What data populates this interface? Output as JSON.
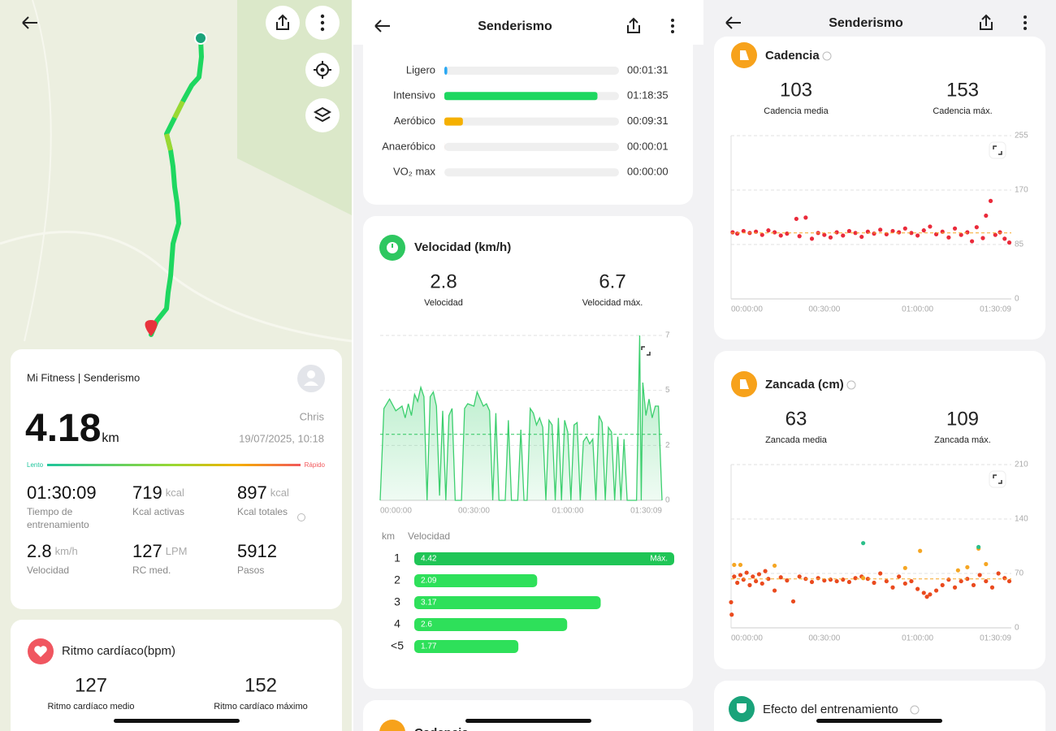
{
  "summary": {
    "source": "Mi Fitness | Senderismo",
    "user": "Chris",
    "datetime": "19/07/2025, 10:18",
    "distance": 4.18,
    "distance_unit": "km",
    "scale_low": "Lento",
    "scale_high": "Rápido",
    "stats": [
      {
        "value": "01:30:09",
        "label": "Tiempo de entrenamiento"
      },
      {
        "value": 719,
        "unit": "kcal",
        "label": "Kcal activas"
      },
      {
        "value": 897,
        "unit": "kcal",
        "label": "Kcal totales"
      },
      {
        "value": 2.8,
        "unit": "km/h",
        "label": "Velocidad"
      },
      {
        "value": 127,
        "unit": "LPM",
        "label": "RC med."
      },
      {
        "value": 5912,
        "label": "Pasos"
      }
    ]
  },
  "heart_rate": {
    "title": "Ritmo cardíaco(bpm)",
    "avg": 127,
    "avg_label": "Ritmo cardíaco medio",
    "max": 152,
    "max_label": "Ritmo cardíaco máximo"
  },
  "header": {
    "title": "Senderismo"
  },
  "zones": {
    "type": "bar",
    "categories": [
      "Ligero",
      "Intensivo",
      "Aeróbico",
      "Anaeróbico",
      "VO₂ max"
    ],
    "values": [
      91,
      4715,
      571,
      1,
      0
    ],
    "value_labels": [
      "00:01:31",
      "01:18:35",
      "00:09:31",
      "00:00:01",
      "00:00:00"
    ],
    "colors": [
      "#2aa8f2",
      "#1ed760",
      "#f5b000",
      "#e8501e",
      "#9b59b6"
    ]
  },
  "speed": {
    "title": "Velocidad (km/h)",
    "avg": 2.8,
    "avg_label": "Velocidad",
    "max": 6.7,
    "max_label": "Velocidad máx.",
    "chart": {
      "type": "line",
      "color": "#3ccf6e",
      "x": [
        0,
        1.2,
        3,
        5,
        7,
        8,
        9,
        10,
        11,
        12,
        13,
        14,
        15,
        16,
        17,
        18,
        19,
        20,
        21,
        22,
        23,
        24,
        26,
        27,
        28,
        30,
        31,
        32,
        33,
        34,
        35,
        36,
        37,
        38,
        40,
        41,
        42,
        44,
        45,
        46,
        47,
        48,
        49,
        50,
        51,
        52,
        53,
        54,
        55,
        56,
        57,
        58,
        59,
        60,
        61,
        62,
        63,
        64,
        65,
        66,
        67,
        68,
        69,
        70,
        71,
        72,
        73,
        74,
        75,
        76,
        77,
        78,
        79,
        82,
        83,
        83.5,
        84,
        85,
        86,
        87,
        88,
        89,
        90.15
      ],
      "values": [
        0,
        3.9,
        4.3,
        3.8,
        4.0,
        3.5,
        4.1,
        3.6,
        4.5,
        4.2,
        4.8,
        4.4,
        0,
        4.4,
        4.6,
        4.0,
        0.2,
        3.8,
        0,
        3.6,
        3.9,
        0,
        0,
        3.9,
        4.1,
        4.0,
        4.6,
        4.3,
        4.0,
        4.1,
        3.8,
        0,
        3.7,
        0,
        0,
        3.4,
        0,
        0,
        3.0,
        0,
        0,
        3.9,
        3.7,
        3.2,
        3.5,
        3.1,
        0,
        3.4,
        3.2,
        0,
        3.5,
        0,
        3.4,
        2.9,
        0,
        3.2,
        3.3,
        0,
        2.5,
        2.7,
        2.4,
        2.6,
        0,
        3.6,
        3.3,
        0,
        3.1,
        2.9,
        0,
        2.7,
        0,
        2.6,
        0,
        0,
        7.0,
        0,
        5.0,
        3.6,
        4.3,
        3.5,
        4.0,
        4.0,
        0
      ],
      "xlim": [
        0,
        90.15
      ],
      "xticks": [
        {
          "value": 0,
          "label": "00:00:00"
        },
        {
          "value": 30,
          "label": "00:30:00"
        },
        {
          "value": 60,
          "label": "01:00:00"
        },
        {
          "value": 90.15,
          "label": "01:30:09"
        }
      ],
      "ylim": [
        0,
        7
      ],
      "yticks": [
        0,
        {
          "value": 2.33,
          "label": "2"
        },
        {
          "value": 4.67,
          "label": "5"
        },
        7
      ],
      "grid": true
    }
  },
  "splits": {
    "type": "bar",
    "column_labels": [
      "km",
      "Velocidad"
    ],
    "categories": [
      "1",
      "2",
      "3",
      "4",
      "<5"
    ],
    "values": [
      4.42,
      2.09,
      3.17,
      2.6,
      1.77
    ],
    "max_label": "Máx.",
    "colors": [
      "#1fc556",
      "#2ee05a",
      "#2ee05a",
      "#2ee05a",
      "#2ee05a"
    ]
  },
  "next_card": {
    "title": "Cadencia"
  },
  "cadence": {
    "title": "Cadencia",
    "avg": 103,
    "avg_label": "Cadencia media",
    "max": 153,
    "max_label": "Cadencia máx.",
    "chart": {
      "type": "scatter",
      "xlim": [
        0,
        90.15
      ],
      "xticks": [
        {
          "value": 0,
          "label": "00:00:00"
        },
        {
          "value": 30,
          "label": "00:30:00"
        },
        {
          "value": 60,
          "label": "01:00:00"
        },
        {
          "value": 90.15,
          "label": "01:30:09"
        }
      ],
      "ylim": [
        0,
        255
      ],
      "yticks": [
        0,
        85,
        170,
        255
      ],
      "grid": true,
      "series": [
        {
          "color": "#ea2a3a",
          "x": [
            0.5,
            2,
            4,
            6,
            8,
            10,
            12,
            14,
            16,
            18,
            21,
            22,
            24,
            26,
            28,
            30,
            32,
            34,
            36,
            38,
            40,
            42,
            44,
            46,
            48,
            50,
            52,
            54,
            56,
            58,
            60,
            62,
            64,
            66,
            68,
            70,
            72,
            74,
            76,
            77.5,
            79,
            81,
            82,
            83.5,
            85,
            86.5,
            88,
            89.5
          ],
          "values": [
            104,
            102,
            106,
            103,
            105,
            100,
            107,
            104,
            99,
            102,
            125,
            98,
            127,
            94,
            103,
            100,
            96,
            104,
            99,
            106,
            103,
            97,
            105,
            102,
            108,
            101,
            106,
            104,
            110,
            103,
            99,
            107,
            113,
            101,
            105,
            96,
            110,
            100,
            104,
            90,
            112,
            95,
            130,
            153,
            100,
            104,
            94,
            88
          ]
        }
      ]
    }
  },
  "stride": {
    "title": "Zancada (cm)",
    "avg": 63,
    "avg_label": "Zancada media",
    "max": 109,
    "max_label": "Zancada máx.",
    "chart": {
      "type": "scatter",
      "xlim": [
        0,
        90.15
      ],
      "xticks": [
        {
          "value": 0,
          "label": "00:00:00"
        },
        {
          "value": 30,
          "label": "00:30:00"
        },
        {
          "value": 60,
          "label": "01:00:00"
        },
        {
          "value": 90.15,
          "label": "01:30:09"
        }
      ],
      "ylim": [
        0,
        210
      ],
      "yticks": [
        0,
        70,
        140,
        210
      ],
      "grid": true,
      "series": [
        {
          "color": "#ea4a1e",
          "x": [
            0,
            1,
            2,
            3,
            4,
            5,
            6,
            7,
            8,
            9,
            10,
            11,
            12,
            14,
            16,
            18,
            20,
            22,
            24,
            26,
            28,
            30,
            32,
            34,
            36,
            38,
            40,
            42,
            44,
            46,
            48,
            50,
            52,
            54,
            56,
            58,
            60,
            62,
            63,
            64,
            66,
            68,
            70,
            72,
            74,
            76,
            78,
            80,
            82,
            84,
            86,
            88,
            89.5,
            0.2
          ],
          "values": [
            33,
            66,
            58,
            68,
            62,
            71,
            55,
            66,
            60,
            69,
            57,
            73,
            63,
            48,
            65,
            61,
            34,
            66,
            63,
            59,
            64,
            61,
            62,
            60,
            62,
            59,
            64,
            66,
            63,
            58,
            70,
            60,
            52,
            66,
            57,
            60,
            50,
            45,
            40,
            43,
            48,
            55,
            62,
            52,
            60,
            63,
            55,
            68,
            60,
            52,
            70,
            64,
            60,
            17
          ]
        },
        {
          "color": "#f5a623",
          "x": [
            1,
            3,
            14,
            42.5,
            56,
            60.8,
            73,
            76,
            79.6,
            82
          ],
          "values": [
            81,
            81,
            80,
            64,
            77,
            99,
            74,
            78,
            102,
            82
          ]
        },
        {
          "color": "#2bbf8a",
          "x": [
            42.5,
            79.6
          ],
          "values": [
            109,
            104
          ]
        }
      ]
    }
  },
  "training_effect": {
    "title": "Efecto del entrenamiento"
  }
}
